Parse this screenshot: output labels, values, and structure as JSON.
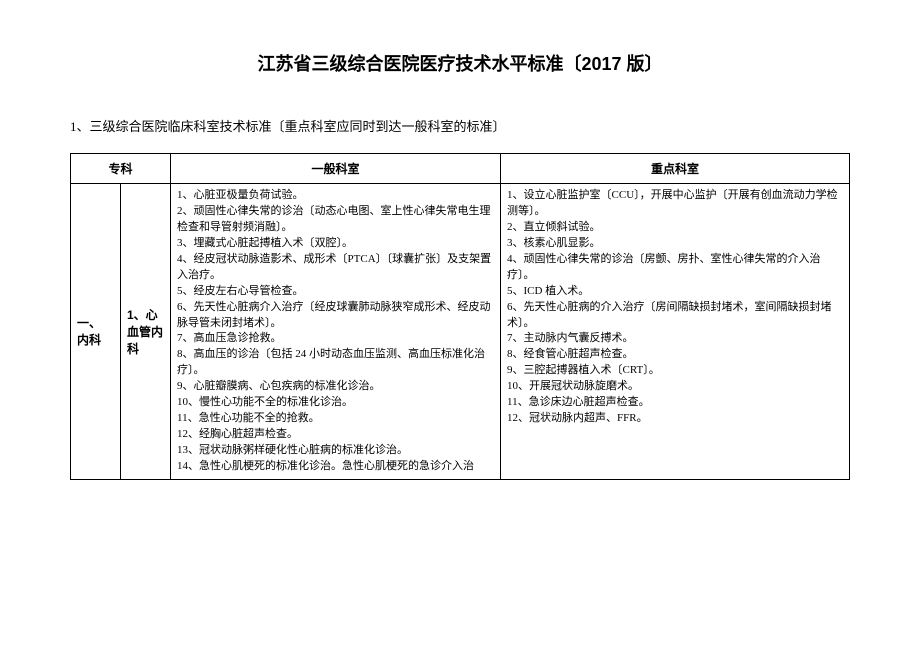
{
  "title": "江苏省三级综合医院医疗技术水平标准〔2017 版〕",
  "subtitle": "1、三级综合医院临床科室技术标准〔重点科室应同时到达一般科室的标准〕",
  "table": {
    "headers": {
      "specialty": "专科",
      "general": "一般科室",
      "key": "重点科室"
    },
    "row": {
      "spec1": "一、 内科",
      "spec2": "1、心血管内科",
      "general_items": [
        "1、心脏亚极量负荷试验。",
        "2、顽固性心律失常的诊治〔动态心电图、室上性心律失常电生理检查和导管射频消融〕。",
        "3、埋藏式心脏起搏植入术〔双腔〕。",
        "4、经皮冠状动脉造影术、成形术〔PTCA〕〔球囊扩张〕及支架置入治疗。",
        "5、经皮左右心导管检查。",
        "6、先天性心脏病介入治疗〔经皮球囊肺动脉狭窄成形术、经皮动脉导管未闭封堵术〕。",
        "7、高血压急诊抢救。",
        "8、高血压的诊治〔包括 24 小时动态血压监测、高血压标准化治疗〕。",
        "9、心脏瓣膜病、心包疾病的标准化诊治。",
        "10、慢性心功能不全的标准化诊治。",
        "11、急性心功能不全的抢救。",
        "12、经胸心脏超声检查。",
        "13、冠状动脉粥样硬化性心脏病的标准化诊治。",
        "14、急性心肌梗死的标准化诊治。急性心肌梗死的急诊介入治"
      ],
      "key_items": [
        "1、设立心脏监护室〔CCU〕，开展中心监护〔开展有创血流动力学检测等〕。",
        "2、直立倾斜试验。",
        "3、核素心肌显影。",
        "4、顽固性心律失常的诊治〔房颤、房扑、室性心律失常的介入治疗〕。",
        "5、ICD 植入术。",
        "6、先天性心脏病的介入治疗〔房间隔缺损封堵术，室间隔缺损封堵术〕。",
        "7、主动脉内气囊反搏术。",
        "8、经食管心脏超声检查。",
        "9、三腔起搏器植入术〔CRT〕。",
        "10、开展冠状动脉旋磨术。",
        "11、急诊床边心脏超声检查。",
        "12、冠状动脉内超声、FFR。"
      ]
    }
  }
}
